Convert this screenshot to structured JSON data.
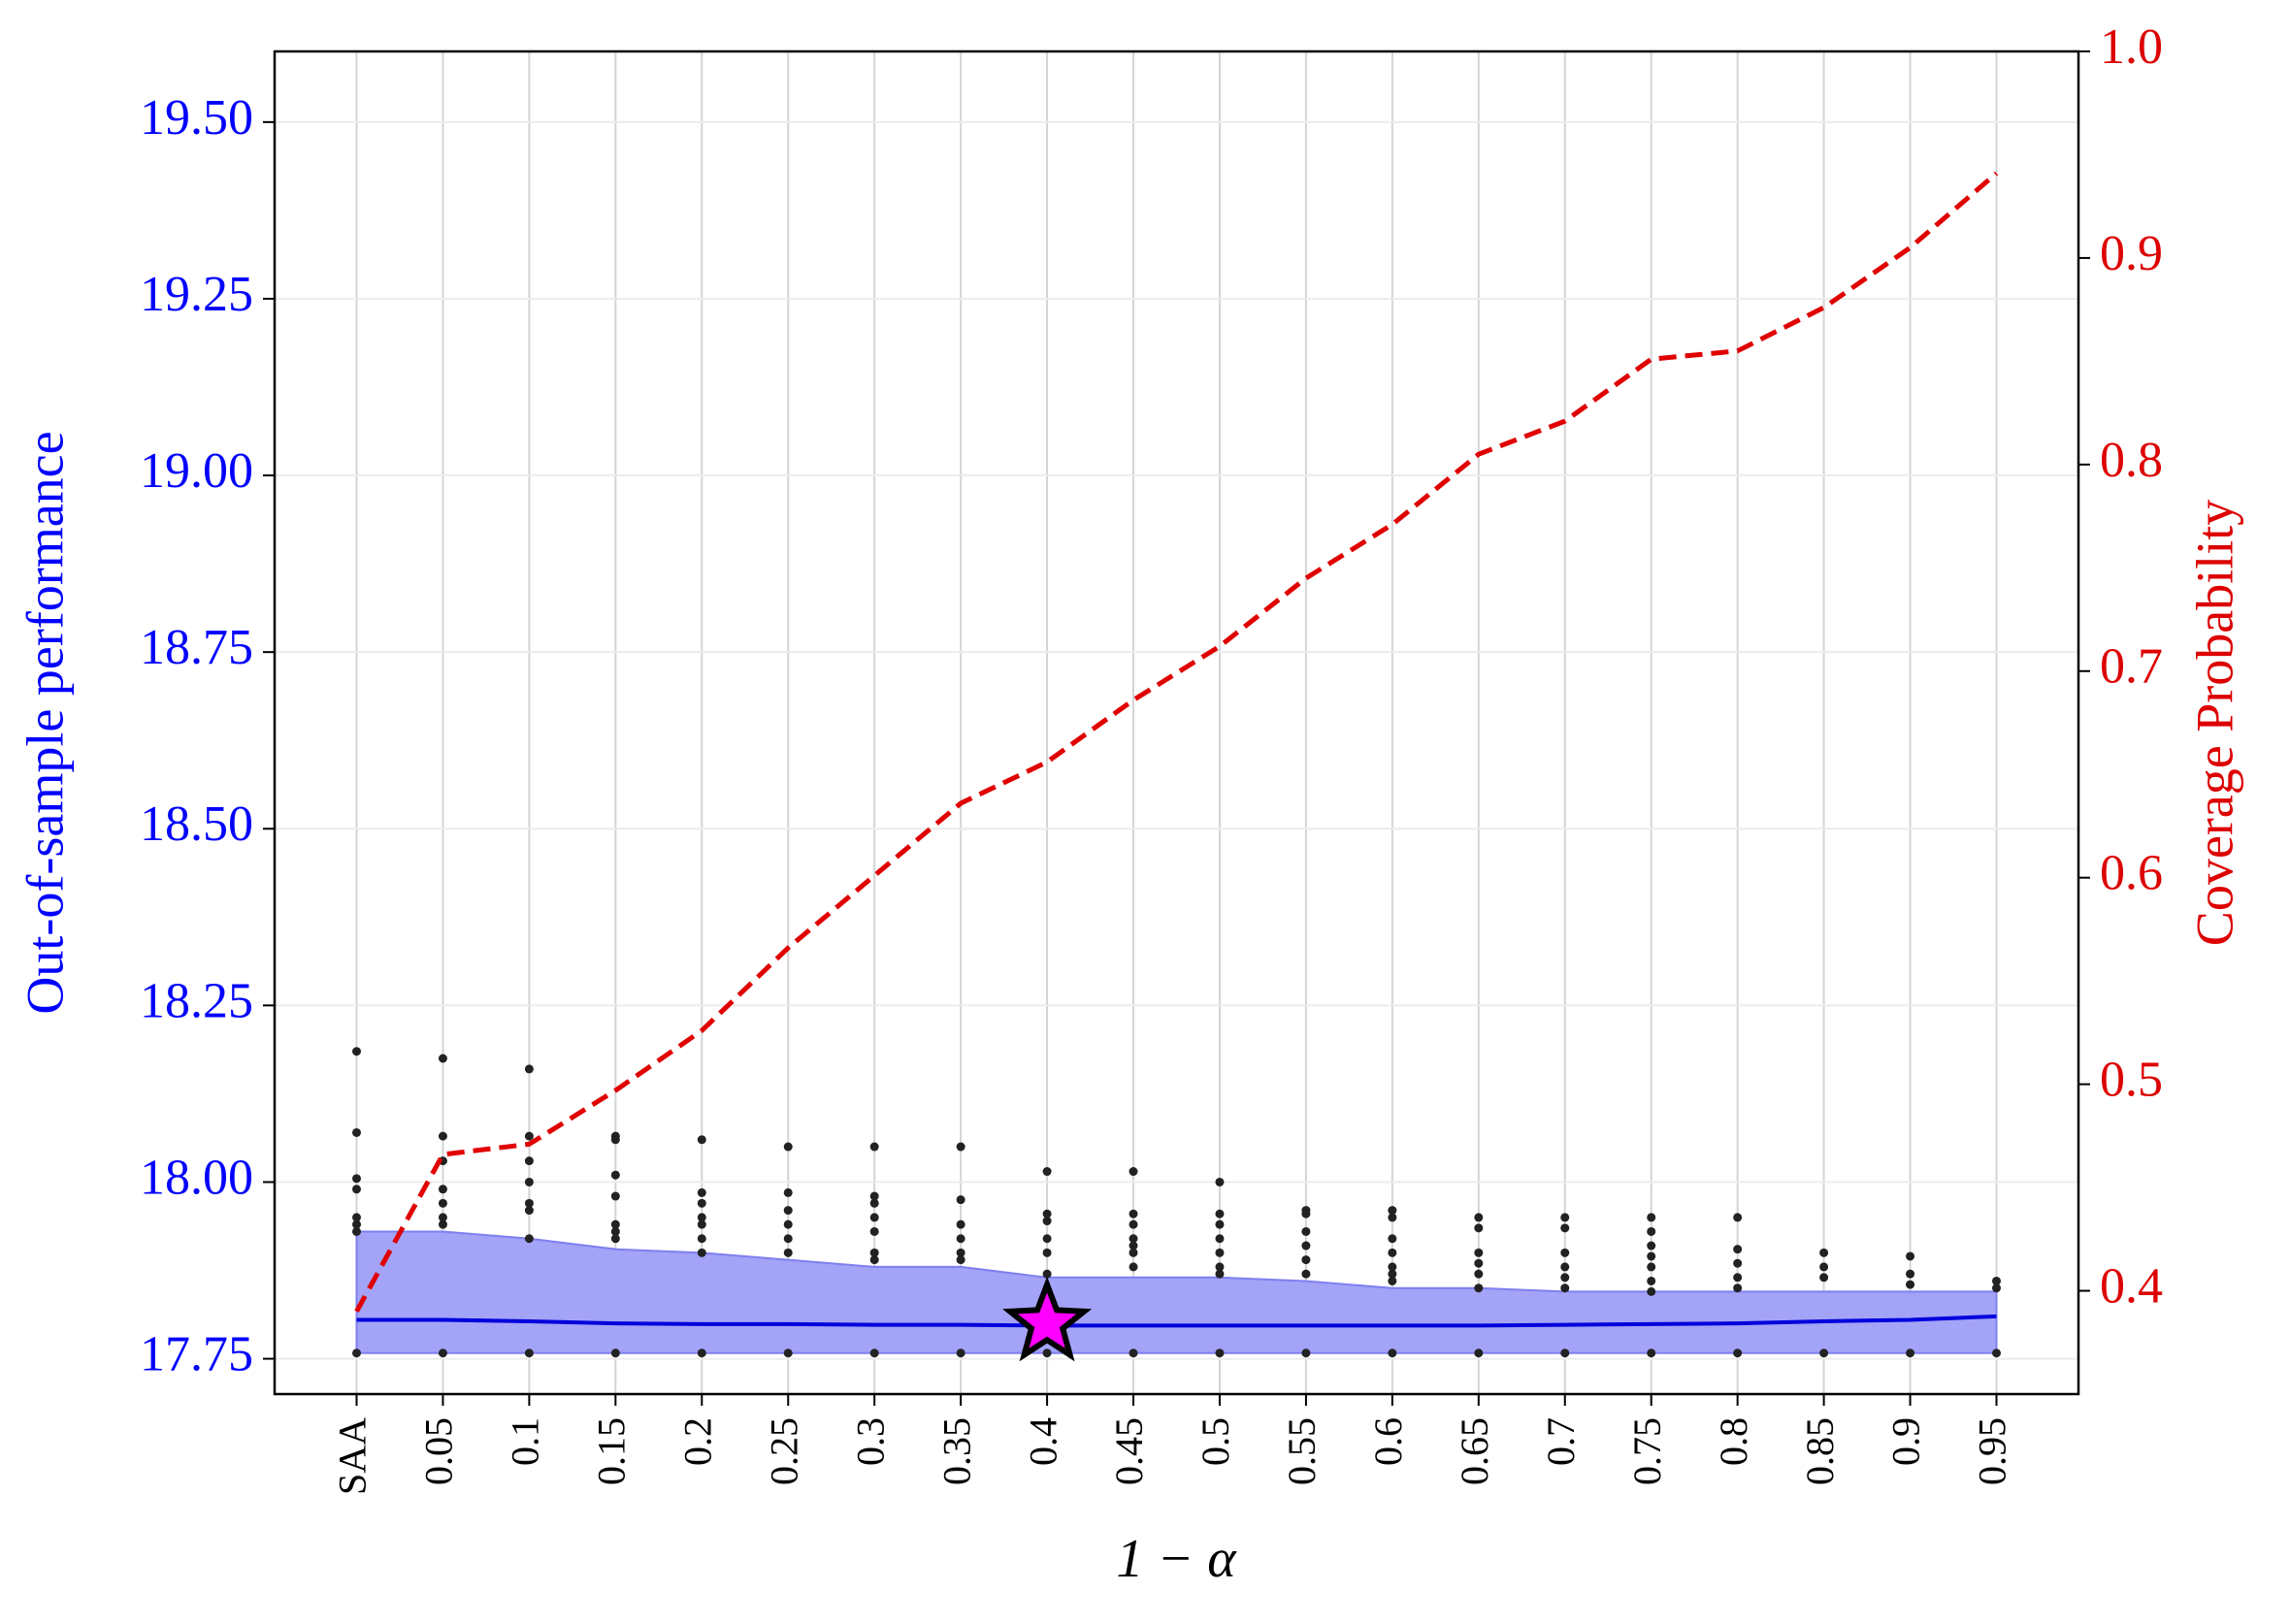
{
  "chart_data": {
    "type": "dual-axis-line",
    "xlabel": "1 − α",
    "ylabel": "Out-of-sample performance",
    "y2label": "Coverage Probability",
    "categories": [
      "SAA",
      "0.05",
      "0.1",
      "0.15",
      "0.2",
      "0.25",
      "0.3",
      "0.35",
      "0.4",
      "0.45",
      "0.5",
      "0.55",
      "0.6",
      "0.65",
      "0.7",
      "0.75",
      "0.8",
      "0.85",
      "0.9",
      "0.95"
    ],
    "ylim": [
      17.7,
      19.6
    ],
    "yticks": [
      17.75,
      {
        "value": 18,
        "label": "18.00"
      },
      18.25,
      {
        "value": 18.5,
        "label": "18.50"
      },
      18.75,
      {
        "value": 19,
        "label": "19.00"
      },
      19.25,
      {
        "value": 19.5,
        "label": "19.50"
      }
    ],
    "y2lim": [
      0.35,
      1.0
    ],
    "y2ticks": [
      0.4,
      0.5,
      0.6,
      0.7,
      0.8,
      0.9,
      {
        "value": 1,
        "label": "1.0"
      }
    ],
    "grid": true,
    "band": {
      "color": "#a3a3f7",
      "edge": "#7f7ff0",
      "upper": [
        17.93,
        17.93,
        17.92,
        17.905,
        17.9,
        17.89,
        17.88,
        17.88,
        17.865,
        17.865,
        17.865,
        17.86,
        17.85,
        17.85,
        17.845,
        17.845,
        17.845,
        17.845,
        17.845,
        17.845
      ],
      "lower": [
        17.758,
        17.758,
        17.758,
        17.758,
        17.758,
        17.758,
        17.758,
        17.758,
        17.758,
        17.758,
        17.758,
        17.758,
        17.758,
        17.758,
        17.758,
        17.758,
        17.758,
        17.758,
        17.758,
        17.758
      ]
    },
    "mean": {
      "color": "#0000dd",
      "values": [
        17.805,
        17.805,
        17.803,
        17.8,
        17.799,
        17.799,
        17.798,
        17.798,
        17.797,
        17.797,
        17.797,
        17.797,
        17.797,
        17.797,
        17.798,
        17.799,
        17.8,
        17.803,
        17.805,
        17.81
      ]
    },
    "samples": {
      "color": "#222222",
      "values": [
        [
          18.185,
          18.07,
          18.005,
          17.99,
          17.95,
          17.94,
          17.93,
          17.758
        ],
        [
          18.175,
          18.065,
          18.03,
          17.99,
          17.97,
          17.95,
          17.94,
          17.758
        ],
        [
          18.16,
          18.065,
          18.03,
          18.0,
          17.97,
          17.96,
          17.92,
          17.758
        ],
        [
          18.065,
          18.06,
          18.01,
          17.98,
          17.94,
          17.93,
          17.92,
          17.758
        ],
        [
          18.06,
          17.985,
          17.97,
          17.95,
          17.94,
          17.92,
          17.9,
          17.758
        ],
        [
          18.05,
          17.985,
          17.96,
          17.94,
          17.92,
          17.9,
          17.758
        ],
        [
          18.05,
          17.98,
          17.97,
          17.95,
          17.93,
          17.9,
          17.89,
          17.758
        ],
        [
          18.05,
          17.975,
          17.94,
          17.92,
          17.9,
          17.89,
          17.758
        ],
        [
          18.015,
          17.955,
          17.945,
          17.92,
          17.9,
          17.87,
          17.758
        ],
        [
          18.015,
          17.955,
          17.94,
          17.92,
          17.91,
          17.9,
          17.88,
          17.758
        ],
        [
          18.0,
          17.955,
          17.94,
          17.92,
          17.9,
          17.88,
          17.87,
          17.758
        ],
        [
          17.96,
          17.955,
          17.93,
          17.91,
          17.89,
          17.87,
          17.758
        ],
        [
          17.96,
          17.95,
          17.92,
          17.9,
          17.88,
          17.87,
          17.86,
          17.758
        ],
        [
          17.95,
          17.935,
          17.9,
          17.885,
          17.87,
          17.85,
          17.758
        ],
        [
          17.95,
          17.935,
          17.9,
          17.88,
          17.865,
          17.85,
          17.758
        ],
        [
          17.95,
          17.93,
          17.91,
          17.895,
          17.88,
          17.86,
          17.845,
          17.758
        ],
        [
          17.95,
          17.905,
          17.885,
          17.865,
          17.85,
          17.758
        ],
        [
          17.9,
          17.88,
          17.865,
          17.758
        ],
        [
          17.895,
          17.87,
          17.855,
          17.758
        ],
        [
          17.86,
          17.85,
          17.758
        ]
      ]
    },
    "coverage": {
      "color": "#e00000",
      "axis": "y2",
      "values": [
        0.39,
        0.466,
        0.471,
        0.497,
        0.526,
        0.566,
        0.601,
        0.636,
        0.656,
        0.686,
        0.712,
        0.745,
        0.771,
        0.805,
        0.821,
        0.851,
        0.855,
        0.876,
        0.905,
        0.941
      ]
    },
    "highlight": {
      "x": "0.4",
      "y": 17.8,
      "color": "#ff00ff"
    },
    "left_color": "#0000ff",
    "right_color": "#dd0000"
  }
}
